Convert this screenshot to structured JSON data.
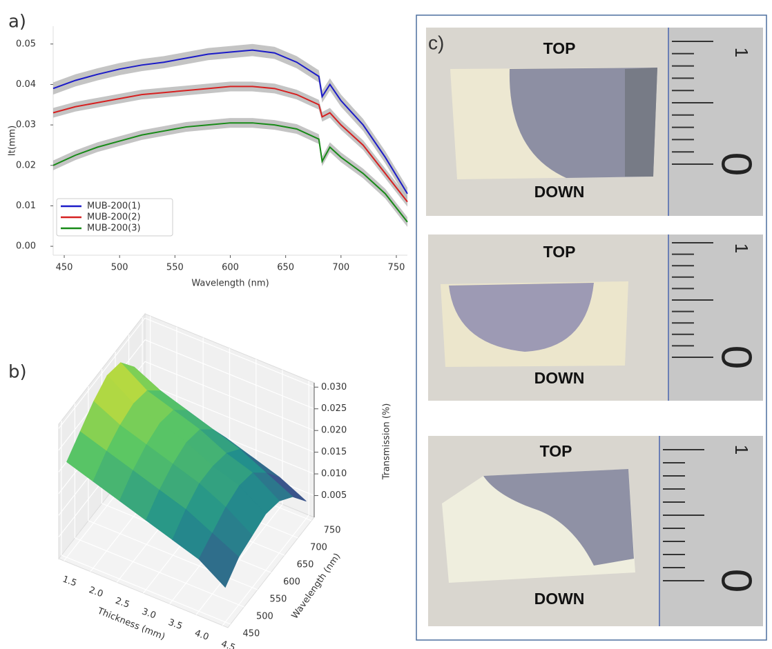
{
  "chart_data": [
    {
      "type": "line",
      "panel_label": "a)",
      "xlabel": "Wavelength (nm)",
      "ylabel": "It(mm)",
      "x": [
        440,
        460,
        480,
        500,
        520,
        540,
        560,
        580,
        600,
        620,
        640,
        660,
        680,
        683,
        690,
        700,
        720,
        740,
        760
      ],
      "series": [
        {
          "name": "MUB-200(1)",
          "color": "#1a1ac8",
          "values": [
            0.039,
            0.041,
            0.0425,
            0.0438,
            0.0448,
            0.0455,
            0.0465,
            0.0475,
            0.048,
            0.0485,
            0.0478,
            0.0455,
            0.042,
            0.037,
            0.04,
            0.036,
            0.03,
            0.022,
            0.013
          ],
          "errors": [
            0.0015,
            0.0015,
            0.0015,
            0.0015,
            0.0015,
            0.0015,
            0.0015,
            0.0015,
            0.0015,
            0.0015,
            0.0015,
            0.0015,
            0.0015,
            0.0015,
            0.0015,
            0.0015,
            0.0015,
            0.0015,
            0.0015
          ]
        },
        {
          "name": "MUB-200(2)",
          "color": "#d62020",
          "values": [
            0.033,
            0.0345,
            0.0355,
            0.0365,
            0.0375,
            0.038,
            0.0385,
            0.039,
            0.0395,
            0.0395,
            0.039,
            0.0375,
            0.035,
            0.032,
            0.033,
            0.03,
            0.025,
            0.018,
            0.011
          ],
          "errors": [
            0.0012,
            0.0012,
            0.0012,
            0.0012,
            0.0012,
            0.0012,
            0.0012,
            0.0012,
            0.0012,
            0.0012,
            0.0012,
            0.0012,
            0.0012,
            0.0012,
            0.0012,
            0.0012,
            0.0012,
            0.0012,
            0.0012
          ]
        },
        {
          "name": "MUB-200(3)",
          "color": "#178a17",
          "values": [
            0.02,
            0.0225,
            0.0245,
            0.026,
            0.0275,
            0.0285,
            0.0295,
            0.03,
            0.0305,
            0.0305,
            0.03,
            0.029,
            0.0265,
            0.021,
            0.0245,
            0.022,
            0.018,
            0.013,
            0.006
          ],
          "errors": [
            0.0012,
            0.0012,
            0.0012,
            0.0012,
            0.0012,
            0.0012,
            0.0012,
            0.0012,
            0.0012,
            0.0012,
            0.0012,
            0.0012,
            0.0012,
            0.0012,
            0.0012,
            0.0012,
            0.0012,
            0.0012,
            0.0012
          ]
        }
      ],
      "xlim": [
        440,
        760
      ],
      "xticks": [
        450,
        500,
        550,
        600,
        650,
        700,
        750
      ],
      "ylim": [
        -0.0022,
        0.0544
      ],
      "yticks": [
        {
          "value": 0,
          "label": "0.00"
        },
        0.01,
        0.02,
        0.03,
        0.04,
        0.05
      ],
      "legend": "lower left",
      "band_color": "#b5b5b5"
    },
    {
      "type": "surface3d",
      "panel_label": "b)",
      "xlabel": "Thickness (mm)",
      "ylabel": "Wavelength (nm)",
      "zlabel": "Transmission (%)",
      "x": [
        1.5,
        2.0,
        2.5,
        3.0,
        3.5,
        4.0,
        4.5
      ],
      "y": [
        450,
        500,
        550,
        600,
        650,
        700,
        750
      ],
      "z": [
        [
          0.022,
          0.025,
          0.028,
          0.03,
          0.029,
          0.024,
          0.016
        ],
        [
          0.02,
          0.023,
          0.025,
          0.026,
          0.025,
          0.021,
          0.014
        ],
        [
          0.018,
          0.021,
          0.023,
          0.024,
          0.023,
          0.019,
          0.012
        ],
        [
          0.016,
          0.019,
          0.021,
          0.022,
          0.021,
          0.017,
          0.011
        ],
        [
          0.014,
          0.017,
          0.019,
          0.019,
          0.018,
          0.015,
          0.009
        ],
        [
          0.012,
          0.014,
          0.016,
          0.017,
          0.016,
          0.012,
          0.007
        ],
        [
          0.008,
          0.011,
          0.012,
          0.013,
          0.012,
          0.009,
          0.004
        ]
      ],
      "xlim": [
        1.4,
        4.6
      ],
      "xticks": [
        1.5,
        {
          "value": 2,
          "label": "2.0"
        },
        2.5,
        {
          "value": 3,
          "label": "3.0"
        },
        3.5,
        {
          "value": 4,
          "label": "4.0"
        },
        4.5
      ],
      "ylim": [
        440,
        760
      ],
      "yticks": [
        450,
        500,
        550,
        600,
        650,
        700,
        750
      ],
      "zlim": [
        0,
        0.031
      ],
      "zticks": [
        0.005,
        {
          "value": 0.01,
          "label": "0.010"
        },
        0.015,
        {
          "value": 0.02,
          "label": "0.020"
        },
        0.025,
        {
          "value": 0.03,
          "label": "0.030"
        }
      ],
      "colormap": [
        "#440154",
        "#3b528b",
        "#21918c",
        "#5ec962",
        "#fde725"
      ],
      "grid": true
    }
  ],
  "photos": {
    "label": "c)",
    "panels": [
      {
        "top": "TOP",
        "down": "DOWN",
        "ruler": [
          "1",
          "0"
        ]
      },
      {
        "top": "TOP",
        "down": "DOWN",
        "ruler": [
          "1",
          "0"
        ]
      },
      {
        "top": "TOP",
        "down": "DOWN",
        "ruler": [
          "1",
          "0"
        ]
      }
    ]
  }
}
